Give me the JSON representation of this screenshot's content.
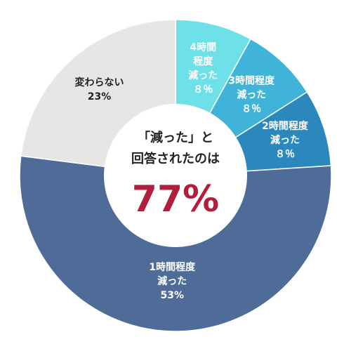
{
  "chart_data": {
    "type": "pie",
    "style": "donut",
    "center": {
      "caption_lines": [
        "「減った」と",
        "回答されたのは"
      ],
      "value_text": "77%",
      "value_color": "#b01f3c"
    },
    "slices": [
      {
        "label_lines": [
          "4時間",
          "程度",
          "減った",
          "８％"
        ],
        "value": 8,
        "color": "#6ee0e8",
        "label_color": "#ffffff"
      },
      {
        "label_lines": [
          "3時間程度",
          "減った",
          "８％"
        ],
        "value": 8,
        "color": "#3fb3d8",
        "label_color": "#ffffff"
      },
      {
        "label_lines": [
          "2時間程度",
          "減った",
          "８％"
        ],
        "value": 8,
        "color": "#2a88bd",
        "label_color": "#ffffff"
      },
      {
        "label_lines": [
          "1時間程度",
          "減った",
          "53%"
        ],
        "value": 53,
        "color": "#4f6c99",
        "label_color": "#ffffff"
      },
      {
        "label_lines": [
          "変わらない",
          "23%"
        ],
        "value": 23,
        "color": "#e6e6e6",
        "label_color": "#222222"
      }
    ]
  }
}
